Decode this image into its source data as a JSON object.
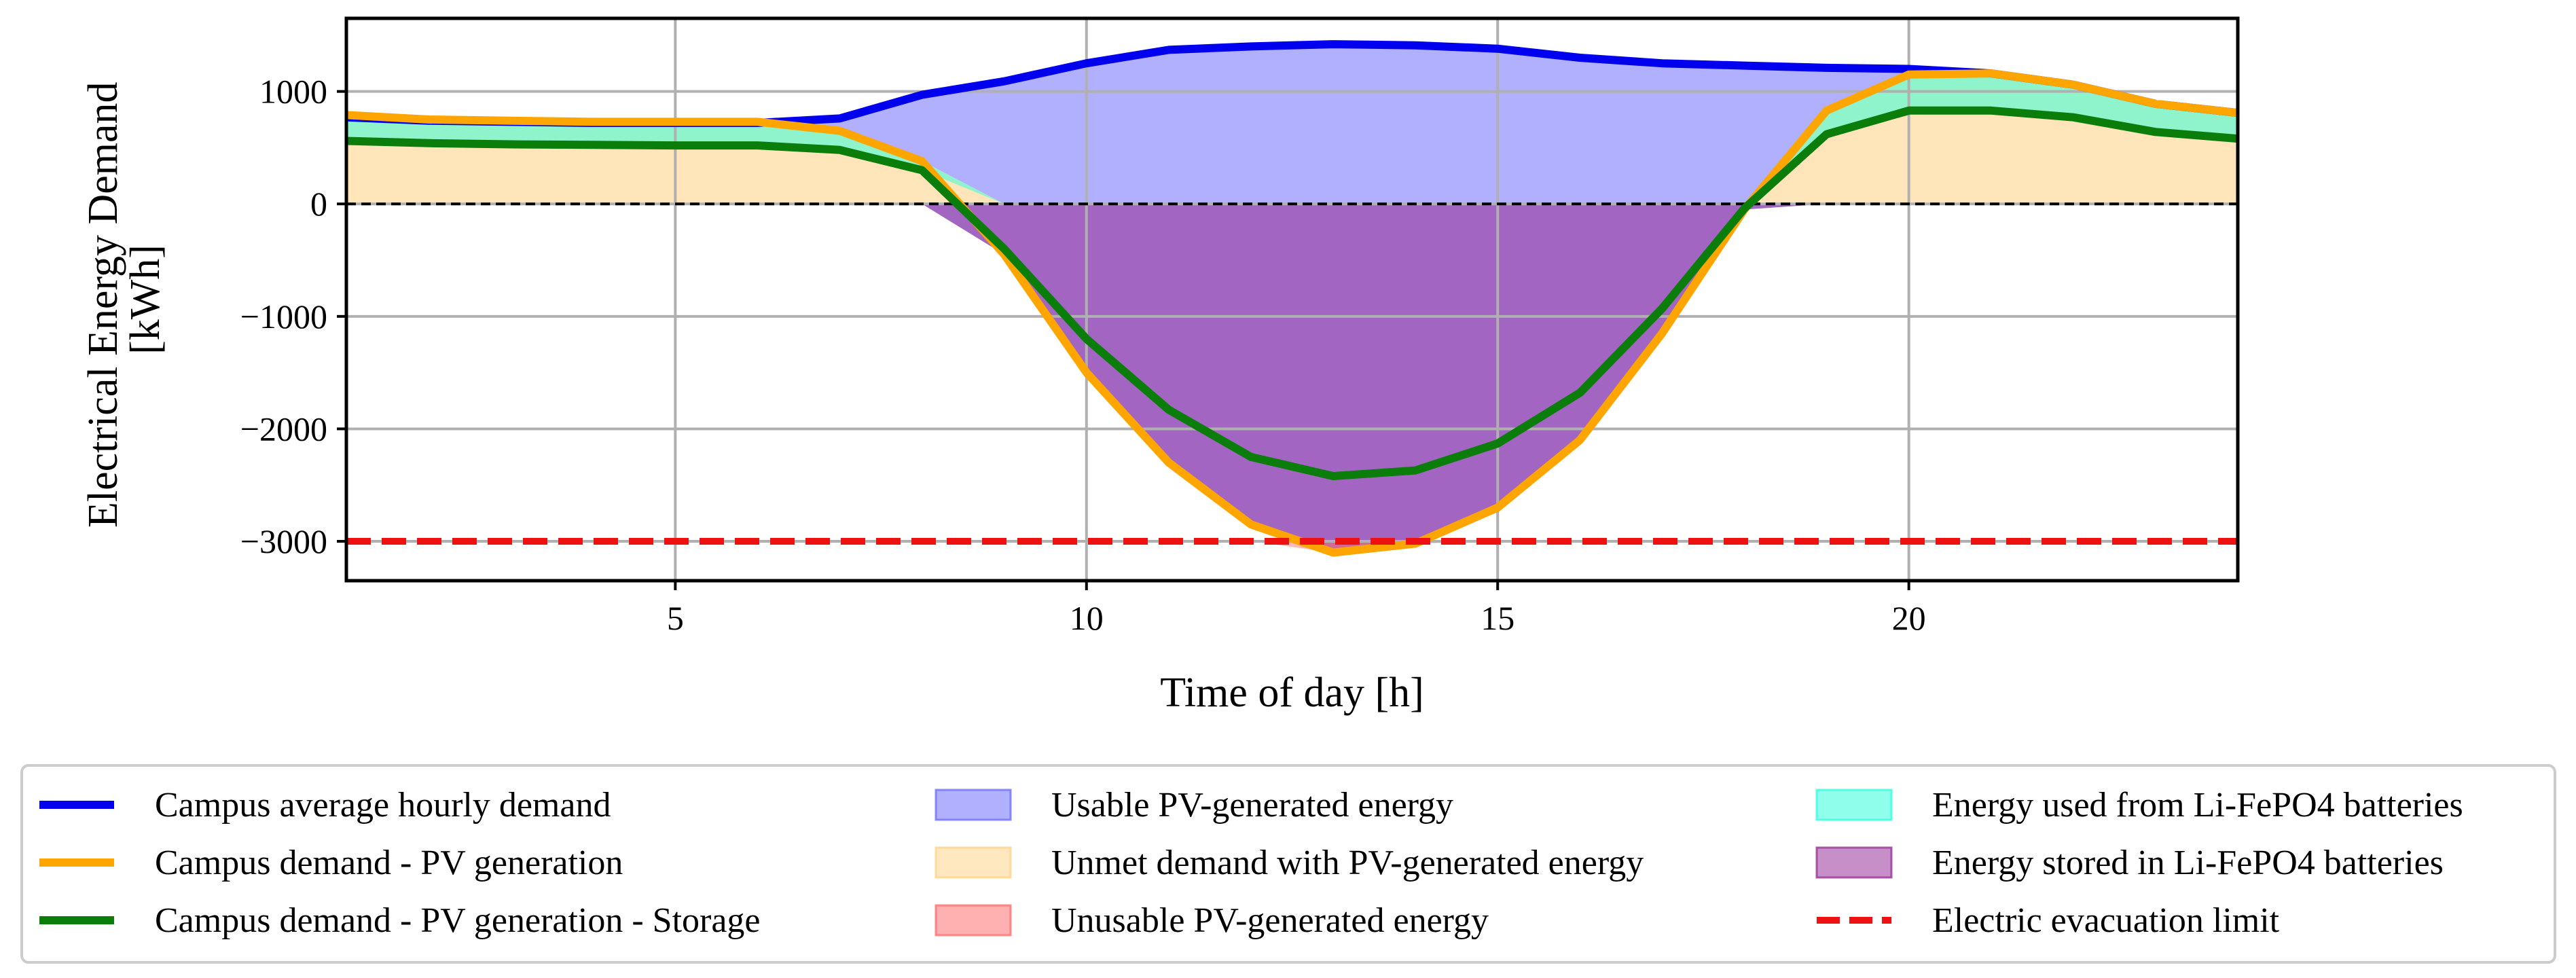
{
  "chart_data": {
    "type": "area",
    "xlabel": "Time of day [h]",
    "ylabel_lines": [
      "Electrical Energy Demand",
      "[kWh]"
    ],
    "xlim": [
      1,
      24
    ],
    "ylim": [
      -3350,
      1650
    ],
    "xticks": [
      5,
      10,
      15,
      20
    ],
    "yticks": [
      1000,
      0,
      -1000,
      -2000,
      -3000
    ],
    "x": [
      1,
      2,
      3,
      4,
      5,
      6,
      7,
      8,
      9,
      10,
      11,
      12,
      13,
      14,
      15,
      16,
      17,
      18,
      19,
      20,
      21,
      22,
      23,
      24
    ],
    "series": [
      {
        "name": "Campus average hourly demand",
        "role": "demand",
        "color": "#0000ee",
        "values": [
          770,
          740,
          730,
          720,
          720,
          720,
          760,
          970,
          1090,
          1250,
          1370,
          1400,
          1420,
          1410,
          1380,
          1300,
          1250,
          1230,
          1210,
          1200,
          1160,
          1060,
          890,
          810
        ]
      },
      {
        "name": "Campus demand - PV generation",
        "role": "net",
        "color": "#ffa500",
        "values": [
          790,
          750,
          740,
          730,
          730,
          730,
          650,
          380,
          -450,
          -1500,
          -2300,
          -2850,
          -3100,
          -3020,
          -2700,
          -2100,
          -1150,
          -50,
          830,
          1150,
          1160,
          1060,
          890,
          810
        ]
      },
      {
        "name": "Campus demand - PV generation - Storage",
        "role": "storage",
        "color": "#0a7d0a",
        "values": [
          560,
          540,
          530,
          525,
          520,
          520,
          480,
          300,
          -400,
          -1200,
          -1830,
          -2250,
          -2420,
          -2370,
          -2130,
          -1680,
          -930,
          -40,
          620,
          830,
          830,
          770,
          640,
          580
        ]
      }
    ],
    "fills": [
      {
        "name": "Usable PV-generated energy",
        "color": "#7070ff"
      },
      {
        "name": "Unmet demand with PV-generated energy",
        "color": "#ffd48a"
      },
      {
        "name": "Unusable PV-generated energy",
        "color": "#ff7070"
      },
      {
        "name": "Energy used from Li-FePO4 batteries",
        "color": "#33ffdd"
      },
      {
        "name": "Energy stored in Li-FePO4 batteries",
        "color": "#993399"
      }
    ],
    "evacuation_limit": {
      "name": "Electric evacuation limit",
      "value": -3000,
      "color": "#ee1111"
    },
    "legend": {
      "placement": "bottom",
      "columns": [
        [
          "Campus average hourly demand",
          "Campus demand - PV generation",
          "Campus demand - PV generation - Storage"
        ],
        [
          "Usable PV-generated energy",
          "Unmet demand with PV-generated energy",
          "Unusable PV-generated energy"
        ],
        [
          "Energy used from Li-FePO4 batteries",
          "Energy stored in Li-FePO4 batteries",
          "Electric evacuation limit"
        ]
      ]
    }
  }
}
